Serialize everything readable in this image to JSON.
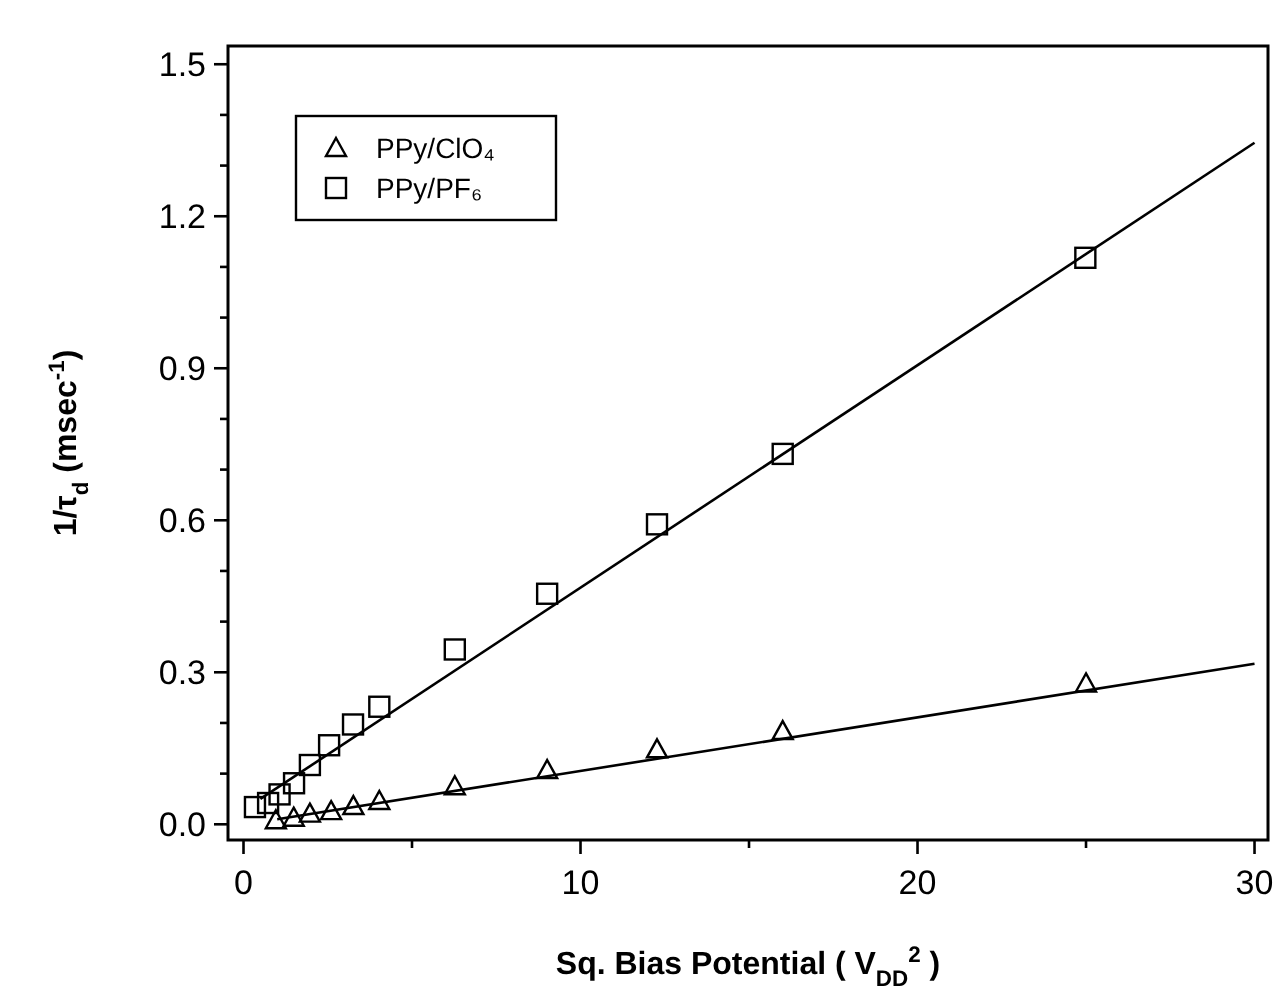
{
  "chart_data": {
    "type": "scatter",
    "xlabel": "Sq. Bias Potential ( V$_{DD}$$^{2}$ )",
    "ylabel": "1/τ$_{d}$ (msec$^{-1}$)",
    "xlim": [
      -0.46,
      30.4
    ],
    "ylim": [
      -0.031,
      1.536
    ],
    "xticks": [
      0,
      {
        "value": 5,
        "label": null
      },
      10,
      {
        "value": 15,
        "label": null
      },
      20,
      {
        "value": 25,
        "label": null
      },
      30
    ],
    "yticks": [
      "0.0",
      {
        "value": 0.1,
        "label": null
      },
      {
        "value": 0.2,
        "label": null
      },
      {
        "value": 0.3,
        "label": "0.3"
      },
      {
        "value": 0.4,
        "label": null
      },
      {
        "value": 0.5,
        "label": null
      },
      {
        "value": 0.6,
        "label": "0.6"
      },
      {
        "value": 0.7,
        "label": null
      },
      {
        "value": 0.8,
        "label": null
      },
      {
        "value": 0.9,
        "label": "0.9"
      },
      {
        "value": 1.0,
        "label": null
      },
      {
        "value": 1.1,
        "label": null
      },
      {
        "value": 1.2,
        "label": "1.2"
      },
      {
        "value": 1.3,
        "label": null
      },
      {
        "value": 1.4,
        "label": null
      },
      {
        "value": 1.5,
        "label": "1.5"
      }
    ],
    "legend": "top left",
    "grid": false,
    "series": [
      {
        "name": "PPy/ClO₄",
        "color": "#000000",
        "marker": "triangle",
        "x": [
          0.96,
          1.49,
          1.97,
          2.6,
          3.26,
          4.03,
          6.27,
          9.01,
          12.27,
          16.0,
          25.0
        ],
        "values": [
          0.008,
          0.013,
          0.021,
          0.026,
          0.036,
          0.046,
          0.075,
          0.107,
          0.148,
          0.184,
          0.278
        ]
      },
      {
        "name": "PPy/PF₆",
        "color": "#000000",
        "marker": "square",
        "x": [
          0.34,
          0.73,
          1.07,
          1.5,
          1.97,
          2.54,
          3.25,
          4.03,
          6.27,
          9.01,
          12.27,
          16.0,
          24.98
        ],
        "values": [
          0.034,
          0.042,
          0.059,
          0.081,
          0.117,
          0.156,
          0.197,
          0.232,
          0.345,
          0.455,
          0.592,
          0.731,
          1.118
        ]
      },
      {
        "type": "line",
        "color": "#000000",
        "line_style": "solid",
        "marker": "none",
        "x": [
          1.0,
          30.0
        ],
        "values": [
          0.01,
          0.317
        ]
      },
      {
        "type": "line",
        "color": "#000000",
        "line_style": "solid",
        "marker": "none",
        "x": [
          0.5,
          30.0
        ],
        "values": [
          0.05,
          1.345
        ]
      }
    ]
  }
}
